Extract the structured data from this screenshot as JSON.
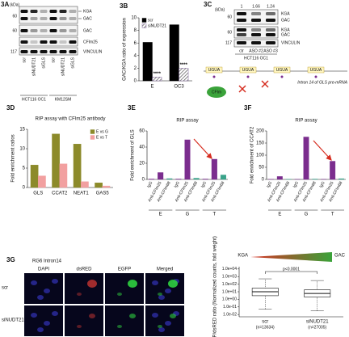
{
  "figure_a": {
    "panel": "3A",
    "unit": "(kDa)",
    "markers": [
      60,
      60,
      117
    ],
    "bands": [
      "KGA",
      "GAC",
      "GAC",
      "CFIm25",
      "VINCULIN"
    ],
    "lanes": [
      "scr",
      "siNUDT21",
      "siGLS",
      "scr",
      "siNUDT21",
      "siGLS"
    ],
    "cell_lines": [
      "HCT116 OC1",
      "KM12SM"
    ]
  },
  "figure_c": {
    "panel": "3C",
    "unit": "(kDa)",
    "ratios": [
      1,
      1.66,
      1.24
    ],
    "markers": [
      60,
      60,
      117
    ],
    "bands": [
      "KGA",
      "GAC",
      "KGA",
      "GAC",
      "VINCULIN"
    ],
    "lanes": [
      "ctr",
      "ASO #2",
      "ASO #3"
    ],
    "cell_line": "HCT116 OC1"
  },
  "diagram": {
    "motifs": [
      "UGUA",
      "UGUA",
      "UGUA",
      "UGUA"
    ],
    "caption": "Intron 14 of GLS pre-mRNA",
    "protein": "CFIm"
  },
  "figure_g": {
    "panel": "3G",
    "construct": "RG6 Intron14",
    "channels": [
      "DAPI",
      "dsRED",
      "EGFP",
      "Merged"
    ],
    "rows": [
      "scr",
      "siNUDT21"
    ]
  },
  "chart_data": [
    {
      "type": "bar",
      "panel": "3B",
      "ylabel": "GAC/KGA ratio of expression",
      "categories": [
        "E",
        "OC3"
      ],
      "series": [
        {
          "name": "scr",
          "color": "#000000",
          "values": [
            6.1,
            8.9
          ]
        },
        {
          "name": "siNUDT21",
          "color": "#6a4a8a",
          "pattern": "hatch",
          "values": [
            0.6,
            2.0
          ]
        }
      ],
      "annotations": [
        "****",
        "****"
      ],
      "ylim": [
        0,
        10
      ],
      "yticks": [
        0,
        2,
        4,
        6,
        8,
        10
      ],
      "legend": "upper left"
    },
    {
      "type": "bar",
      "panel": "3D",
      "title": "RIP assay with CFIm25 antibody",
      "ylabel": "Fold enrichment ratios",
      "categories": [
        "GLS",
        "CCAT2",
        "NEAT1",
        "GAS5"
      ],
      "series": [
        {
          "name": "E vs G",
          "color": "#8c8a2a",
          "values": [
            5.8,
            13.8,
            11.2,
            1.2
          ]
        },
        {
          "name": "E vs T",
          "color": "#f2a0a0",
          "values": [
            3.0,
            6.1,
            1.5,
            0.4
          ]
        }
      ],
      "ylim": [
        0,
        15
      ],
      "yticks": [
        0,
        5,
        10,
        15
      ],
      "legend": "upper right"
    },
    {
      "type": "bar",
      "panel": "3E",
      "title": "RIP assay",
      "ylabel": "Fold enrichment of GLS",
      "categories": [
        "IgG",
        "Anti-CFIm25",
        "Anti-CFIm68",
        "IgG",
        "Anti-CFIm25",
        "Anti-CFIm68",
        "IgG",
        "Anti-CFIm25",
        "Anti-CFIm68"
      ],
      "groups": [
        "E",
        "G",
        "T"
      ],
      "values": [
        0.5,
        8.5,
        1.0,
        0.5,
        49,
        1.5,
        0.5,
        25,
        5.5
      ],
      "colors": [
        "#7b2d8e",
        "#7b2d8e",
        "#3aa38a",
        "#7b2d8e",
        "#7b2d8e",
        "#3aa38a",
        "#7b2d8e",
        "#7b2d8e",
        "#3aa38a"
      ],
      "ylim": [
        0,
        60
      ],
      "yticks": [
        0,
        20,
        40,
        60
      ]
    },
    {
      "type": "bar",
      "panel": "3F",
      "title": "RIP assay",
      "ylabel": "Fold enrichment of CCAT2",
      "categories": [
        "IgG",
        "Anti-CFIm25",
        "Anti-CFIm68",
        "IgG",
        "Anti-CFIm25",
        "Anti-CFIm68",
        "IgG",
        "Anti-CFIm25",
        "Anti-CFIm68"
      ],
      "groups": [
        "E",
        "G",
        "T"
      ],
      "values": [
        0.5,
        12,
        1,
        0.5,
        175,
        1.5,
        0.5,
        75,
        3
      ],
      "colors": [
        "#7b2d8e",
        "#7b2d8e",
        "#3aa38a",
        "#7b2d8e",
        "#7b2d8e",
        "#3aa38a",
        "#7b2d8e",
        "#7b2d8e",
        "#3aa38a"
      ],
      "ylim": [
        0,
        200
      ],
      "yticks": [
        0,
        50,
        100,
        150,
        200
      ]
    },
    {
      "type": "box",
      "ylabel": "EGFP/dsRED ratio (Normalized counts, fold weight)",
      "categories": [
        "scr",
        "siNUDT21"
      ],
      "sample_sizes": [
        "(n=13634)",
        "(n=27005)"
      ],
      "boxes": [
        {
          "whislo": 0.05,
          "q1": 3,
          "med": 10,
          "q3": 30,
          "whishi": 500
        },
        {
          "whislo": 0.03,
          "q1": 2,
          "med": 6,
          "q3": 18,
          "whishi": 300
        }
      ],
      "log": true,
      "ylim": [
        0.005,
        20000
      ],
      "yticks": [
        {
          "value": 0.01,
          "label": "1.0e-02"
        },
        {
          "value": 0.1,
          "label": "1.0e-01"
        },
        {
          "value": 1,
          "label": "1.0e+00"
        },
        {
          "value": 10,
          "label": "1.0e+01"
        },
        {
          "value": 100,
          "label": "1.0e+02"
        },
        {
          "value": 1000,
          "label": "1.0e+03"
        },
        {
          "value": 10000,
          "label": "1.0e+04"
        }
      ],
      "annotation": "p<0.0001",
      "gradient": [
        "KGA",
        "GAC"
      ],
      "color": "#ffffff"
    }
  ]
}
